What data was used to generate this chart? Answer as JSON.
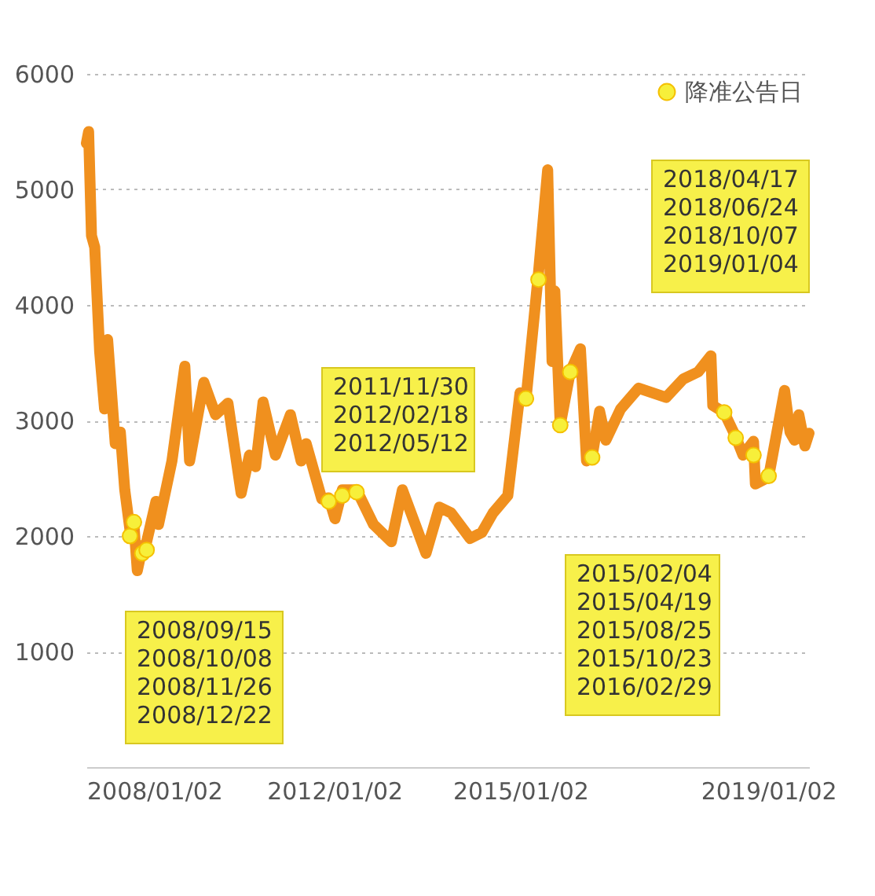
{
  "chart_data": {
    "type": "line",
    "xlim": [
      "2008-01-02",
      "2019-08-30"
    ],
    "ylim": [
      0,
      6000
    ],
    "xticks": [
      {
        "value": "2008-01-02",
        "label": "2008/01/02"
      },
      {
        "value": "2012-01-02",
        "label": "2012/01/02"
      },
      {
        "value": "2015-01-02",
        "label": "2015/01/02"
      },
      {
        "value": "2019-01-02",
        "label": "2019/01/02"
      }
    ],
    "yticks": [
      1000,
      2000,
      3000,
      4000,
      5000,
      6000
    ],
    "grid": "y",
    "legend": "top right",
    "series": [
      {
        "color": "#f0901e",
        "line_style": "solid",
        "x": [
          "2008-01-02",
          "2008-01-15",
          "2008-02-01",
          "2008-02-20",
          "2008-03-20",
          "2008-04-18",
          "2008-05-06",
          "2008-06-20",
          "2008-07-20",
          "2008-08-15",
          "2008-09-15",
          "2008-10-08",
          "2008-10-28",
          "2008-11-26",
          "2008-12-22",
          "2009-02-15",
          "2009-03-02",
          "2009-05-20",
          "2009-08-04",
          "2009-09-01",
          "2009-11-24",
          "2010-02-01",
          "2010-04-15",
          "2010-07-02",
          "2010-08-20",
          "2010-09-25",
          "2010-11-08",
          "2011-01-20",
          "2011-04-18",
          "2011-06-20",
          "2011-07-20",
          "2011-10-20",
          "2011-11-30",
          "2012-01-06",
          "2012-02-18",
          "2012-05-12",
          "2012-08-20",
          "2012-12-03",
          "2013-02-06",
          "2013-06-25",
          "2013-09-12",
          "2013-11-20",
          "2014-03-12",
          "2014-05-20",
          "2014-07-25",
          "2014-10-20",
          "2014-12-31",
          "2015-02-04",
          "2015-04-19",
          "2015-06-12",
          "2015-07-08",
          "2015-07-24",
          "2015-08-25",
          "2015-10-23",
          "2015-12-22",
          "2016-01-27",
          "2016-02-29",
          "2016-04-13",
          "2016-05-20",
          "2016-08-15",
          "2016-11-29",
          "2017-05-10",
          "2017-08-20",
          "2017-11-14",
          "2018-01-29",
          "2018-02-09",
          "2018-04-17",
          "2018-06-24",
          "2018-08-06",
          "2018-10-07",
          "2018-10-18",
          "2019-01-04",
          "2019-04-08",
          "2019-05-10",
          "2019-06-06",
          "2019-07-01",
          "2019-08-06",
          "2019-08-30"
        ],
        "values": [
          5400,
          5500,
          4600,
          4500,
          3600,
          3100,
          3700,
          2800,
          2900,
          2400,
          2050,
          2100,
          1700,
          1900,
          1950,
          2300,
          2100,
          2650,
          3470,
          2650,
          3330,
          3050,
          3150,
          2370,
          2700,
          2600,
          3160,
          2700,
          3050,
          2650,
          2800,
          2320,
          2330,
          2150,
          2400,
          2400,
          2100,
          1950,
          2400,
          1850,
          2250,
          2200,
          1980,
          2030,
          2200,
          2350,
          3240,
          3180,
          4280,
          5170,
          3510,
          4120,
          2960,
          3420,
          3620,
          2650,
          2690,
          3080,
          2830,
          3100,
          3280,
          3200,
          3360,
          3420,
          3560,
          3130,
          3070,
          2860,
          2700,
          2820,
          2450,
          2510,
          3260,
          2900,
          2830,
          3050,
          2780,
          2890
        ]
      },
      {
        "type": "scatter",
        "name": "降准公告日",
        "color": "#f7ef3a",
        "marker": "circle",
        "x": [
          "2008-09-15",
          "2008-10-08",
          "2008-11-26",
          "2008-12-22",
          "2011-11-30",
          "2012-02-18",
          "2012-05-12",
          "2015-02-04",
          "2015-04-19",
          "2015-08-25",
          "2015-10-23",
          "2016-02-29",
          "2018-04-17",
          "2018-06-24",
          "2018-10-07",
          "2019-01-04"
        ],
        "values": [
          2000,
          2120,
          1850,
          1880,
          2300,
          2350,
          2380,
          3190,
          4220,
          2960,
          3420,
          2680,
          3070,
          2850,
          2700,
          2520
        ]
      }
    ],
    "annotations": [
      "2008/09/15\n2008/10/08\n2008/11/26\n2008/12/22",
      "2011/11/30\n2012/02/18\n2012/05/12",
      "2015/02/04\n2015/04/19\n2015/08/25\n2015/10/23\n2016/02/29",
      "2018/04/17\n2018/06/24\n2018/10/07\n2019/01/04"
    ]
  }
}
